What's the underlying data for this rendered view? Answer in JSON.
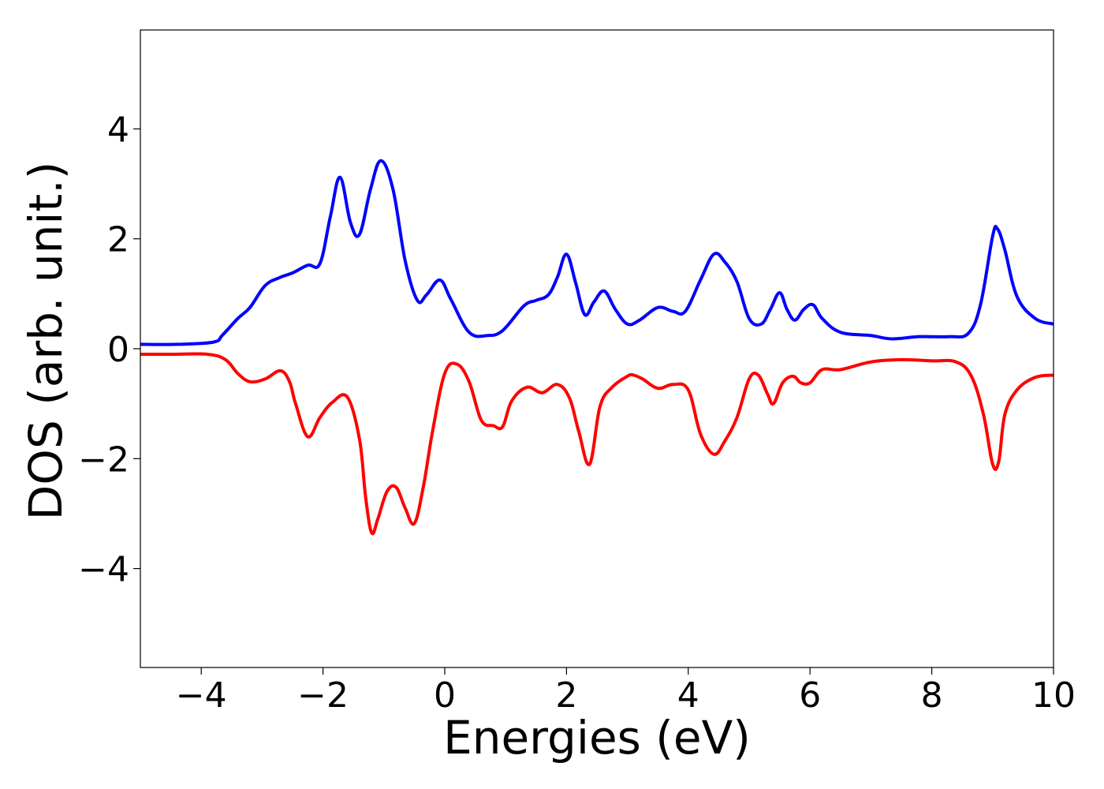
{
  "chart_data": {
    "type": "line",
    "title": "",
    "xlabel": "Energies (eV)",
    "ylabel": "DOS (arb. unit.)",
    "xlim": [
      -5,
      10
    ],
    "ylim": [
      -5.8,
      5.8
    ],
    "xticks": [
      -4,
      -2,
      0,
      2,
      4,
      6,
      8,
      10
    ],
    "yticks": [
      -4,
      -2,
      0,
      2,
      4
    ],
    "xtick_labels": [
      "−4",
      "−2",
      "0",
      "2",
      "4",
      "6",
      "8",
      "10"
    ],
    "ytick_labels": [
      "−4",
      "−2",
      "0",
      "2",
      "4"
    ],
    "grid": false,
    "legend": "none",
    "series": [
      {
        "color": "#0000ff",
        "x": [
          -5,
          -4.4,
          -3.8,
          -3.65,
          -3.4,
          -3.2,
          -2.95,
          -2.7,
          -2.5,
          -2.25,
          -2.05,
          -1.88,
          -1.72,
          -1.55,
          -1.4,
          -1.22,
          -1.05,
          -0.85,
          -0.65,
          -0.45,
          -0.3,
          -0.08,
          0.1,
          0.4,
          0.7,
          0.95,
          1.3,
          1.5,
          1.7,
          1.85,
          2.0,
          2.15,
          2.3,
          2.45,
          2.62,
          2.8,
          3.0,
          3.2,
          3.5,
          3.75,
          3.95,
          4.2,
          4.42,
          4.6,
          4.8,
          5.0,
          5.2,
          5.35,
          5.5,
          5.62,
          5.75,
          5.9,
          6.05,
          6.2,
          6.5,
          7.0,
          7.35,
          7.8,
          8.3,
          8.6,
          8.8,
          9.0,
          9.08,
          9.2,
          9.4,
          9.7,
          10
        ],
        "y": [
          0.08,
          0.08,
          0.12,
          0.25,
          0.55,
          0.75,
          1.15,
          1.3,
          1.38,
          1.52,
          1.55,
          2.4,
          3.12,
          2.3,
          2.08,
          2.9,
          3.42,
          2.9,
          1.6,
          0.88,
          0.98,
          1.25,
          0.9,
          0.3,
          0.24,
          0.33,
          0.78,
          0.88,
          0.98,
          1.3,
          1.72,
          1.2,
          0.62,
          0.85,
          1.05,
          0.72,
          0.45,
          0.52,
          0.75,
          0.68,
          0.68,
          1.25,
          1.72,
          1.58,
          1.22,
          0.55,
          0.45,
          0.72,
          1.02,
          0.72,
          0.52,
          0.72,
          0.8,
          0.55,
          0.3,
          0.24,
          0.18,
          0.22,
          0.22,
          0.28,
          0.8,
          2.05,
          2.18,
          1.8,
          0.95,
          0.55,
          0.45
        ]
      },
      {
        "color": "#ff0000",
        "x": [
          -5,
          -4.5,
          -3.9,
          -3.6,
          -3.4,
          -3.2,
          -2.95,
          -2.7,
          -2.55,
          -2.45,
          -2.25,
          -2.05,
          -1.85,
          -1.6,
          -1.4,
          -1.3,
          -1.2,
          -1.1,
          -0.95,
          -0.8,
          -0.65,
          -0.5,
          -0.35,
          -0.2,
          0.0,
          0.2,
          0.4,
          0.6,
          0.8,
          0.95,
          1.1,
          1.35,
          1.6,
          1.85,
          2.05,
          2.2,
          2.38,
          2.55,
          2.75,
          3.0,
          3.1,
          3.25,
          3.5,
          3.75,
          4.0,
          4.2,
          4.42,
          4.6,
          4.8,
          5.0,
          5.15,
          5.3,
          5.4,
          5.55,
          5.72,
          5.85,
          6.0,
          6.2,
          6.5,
          7.0,
          7.5,
          8.0,
          8.4,
          8.65,
          8.85,
          9.0,
          9.1,
          9.2,
          9.4,
          9.7,
          10
        ],
        "y": [
          -0.1,
          -0.1,
          -0.1,
          -0.2,
          -0.45,
          -0.6,
          -0.55,
          -0.4,
          -0.6,
          -1.0,
          -1.6,
          -1.25,
          -0.98,
          -0.88,
          -1.65,
          -2.7,
          -3.35,
          -3.1,
          -2.6,
          -2.52,
          -2.9,
          -3.18,
          -2.5,
          -1.5,
          -0.45,
          -0.28,
          -0.6,
          -1.3,
          -1.4,
          -1.42,
          -0.95,
          -0.7,
          -0.8,
          -0.65,
          -0.9,
          -1.5,
          -2.1,
          -1.05,
          -0.7,
          -0.5,
          -0.48,
          -0.55,
          -0.72,
          -0.65,
          -0.75,
          -1.55,
          -1.92,
          -1.68,
          -1.25,
          -0.55,
          -0.48,
          -0.82,
          -1.0,
          -0.62,
          -0.5,
          -0.62,
          -0.62,
          -0.38,
          -0.38,
          -0.24,
          -0.2,
          -0.22,
          -0.24,
          -0.5,
          -1.2,
          -2.1,
          -2.05,
          -1.2,
          -0.75,
          -0.52,
          -0.48
        ]
      }
    ]
  }
}
